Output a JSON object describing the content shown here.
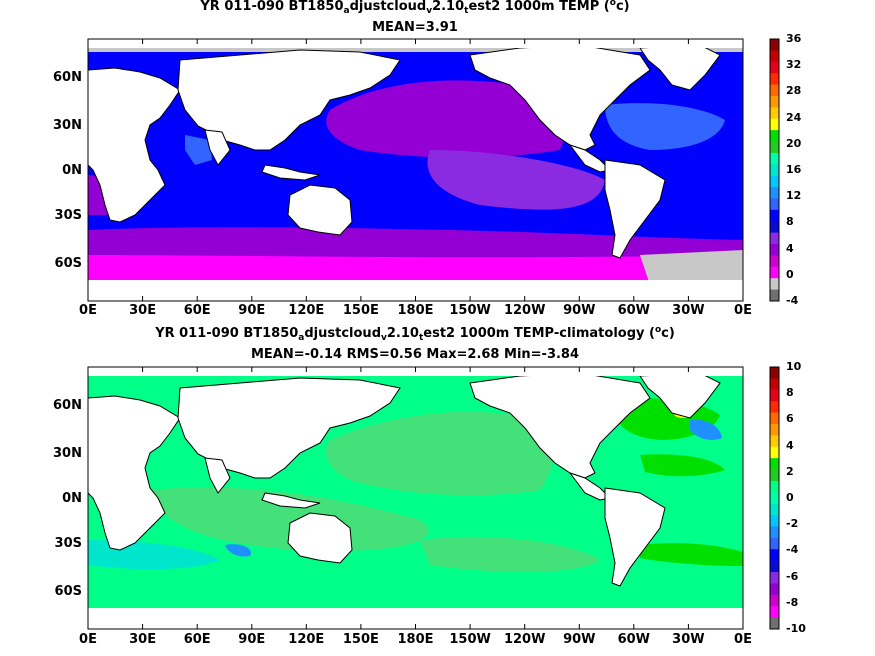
{
  "panels": [
    {
      "title": {
        "pre": "YR 011-090 BT1850",
        "s1": "a",
        "mid1": "djustcloud",
        "s2": "v",
        "mid2": "2.10",
        "s3": "t",
        "mid3": "est2 1000m TEMP (",
        "sup": "o",
        "post": "c)"
      },
      "stats": "MEAN=3.91",
      "colorbar": {
        "labels": [
          "36",
          "32",
          "28",
          "24",
          "20",
          "16",
          "12",
          "8",
          "4",
          "0",
          "-4"
        ],
        "colors": [
          "#8b0000",
          "#c40000",
          "#e8001a",
          "#ff2a00",
          "#ff6a00",
          "#ff9900",
          "#ffcc00",
          "#ffff00",
          "#00e000",
          "#22cc22",
          "#00ffaa",
          "#00e6cc",
          "#00c8ff",
          "#1e90ff",
          "#3264ff",
          "#0000ff",
          "#0a0ad8",
          "#8a2be2",
          "#9400d3",
          "#d000d0",
          "#ff00ff",
          "#c8c8c8",
          "#707070"
        ]
      }
    },
    {
      "title": {
        "pre": "YR 011-090 BT1850",
        "s1": "a",
        "mid1": "djustcloud",
        "s2": "v",
        "mid2": "2.10",
        "s3": "t",
        "mid3": "est2 1000m TEMP-climatology (",
        "sup": "o",
        "post": "c)"
      },
      "stats": "MEAN=-0.14   RMS=0.56   Max=2.68   Min=-3.84",
      "colorbar": {
        "labels": [
          "10",
          "8",
          "6",
          "4",
          "2",
          "0",
          "-2",
          "-4",
          "-6",
          "-8",
          "-10"
        ],
        "colors": [
          "#8b0000",
          "#c40000",
          "#e8001a",
          "#ff2a00",
          "#ff6a00",
          "#ff9900",
          "#ffcc00",
          "#ffff00",
          "#00e000",
          "#22cc22",
          "#00ff88",
          "#00ffaa",
          "#00e6cc",
          "#00c8ff",
          "#1e90ff",
          "#3264ff",
          "#0000ff",
          "#0a0ad8",
          "#8a2be2",
          "#9400d3",
          "#d000d0",
          "#ff00ff",
          "#707070"
        ]
      }
    }
  ],
  "y_axis_labels": [
    "60N",
    "30N",
    "0N",
    "30S",
    "60S"
  ],
  "x_axis_labels": [
    "0E",
    "30E",
    "60E",
    "90E",
    "120E",
    "150E",
    "180E",
    "150W",
    "120W",
    "90W",
    "60W",
    "30W",
    "0E"
  ],
  "colors": {
    "land": "#ffffff",
    "ice": "#c8c8c8",
    "top_purple": "#9400d3",
    "top_violet": "#8a2be2",
    "top_blue": "#0000ff",
    "top_lightblue": "#3264ff",
    "top_magenta": "#ff00ff",
    "bot_green": "#00ff88",
    "bot_lightgreen": "#44e07a",
    "bot_cyan": "#00e6cc",
    "bot_green2": "#00e000",
    "bot_blue": "#1e90ff"
  }
}
